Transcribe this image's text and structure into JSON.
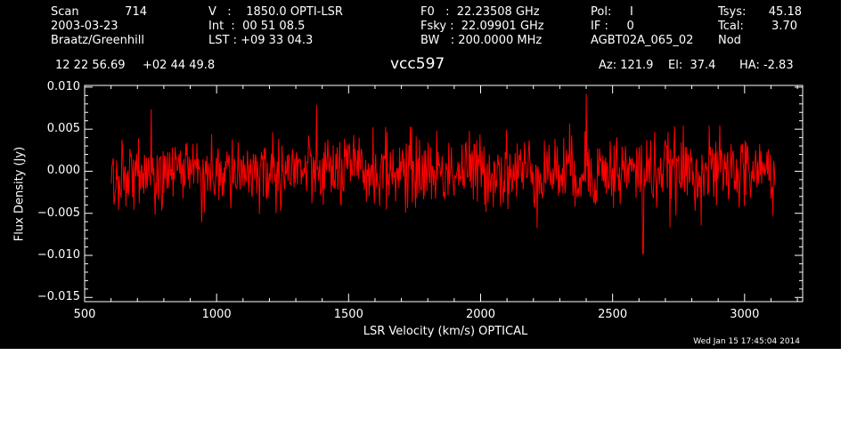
{
  "header": {
    "scan_label": "Scan",
    "scan_value": "714",
    "date": "2003-03-23",
    "observer": "Braatz/Greenhill",
    "velocity": "V   :    1850.0 OPTI-LSR",
    "int_time": "Int  :  00 51 08.5",
    "lst": "LST : +09 33 04.3",
    "f0": "F0   :  22.23508 GHz",
    "fsky": "Fsky :  22.09901 GHz",
    "bw": "BW   : 200.0000 MHz",
    "pol": "Pol:     I",
    "if": "IF :     0",
    "project": "AGBT02A_065_02",
    "tsys_label": "Tsys:",
    "tsys_value": "45.18",
    "tcal_label": "Tcal:",
    "tcal_value": "3.70",
    "mode": "Nod",
    "ra": "12 22 56.69",
    "dec": "+02 44 49.8",
    "source": "vcc597",
    "azimuth": "Az: 121.9",
    "elevation": "El:  37.4",
    "hour_angle": "HA: -2.83"
  },
  "timestamp": "Wed Jan 15 17:45:04 2014",
  "chart_data": {
    "type": "line",
    "xlabel": "LSR Velocity (km/s) OPTICAL",
    "ylabel": "Flux Density (Jy)",
    "xlim": [
      500,
      3220
    ],
    "ylim": [
      -0.0155,
      0.0102
    ],
    "x_ticks": [
      500,
      1000,
      1500,
      2000,
      2500,
      3000
    ],
    "x_tick_labels": [
      "500",
      "1000",
      "1500",
      "2000",
      "2500",
      "3000"
    ],
    "y_ticks": [
      -0.015,
      -0.01,
      -0.005,
      0.0,
      0.005,
      0.01
    ],
    "y_tick_labels": [
      "−0.015",
      "−0.010",
      "−0.005",
      "0.000",
      "0.005",
      "0.010"
    ],
    "grid": false,
    "series": [
      {
        "color": "#ff0000",
        "x_range": [
          601,
          3115
        ],
        "num_points": 1000,
        "mean": 0.0,
        "rms": 0.0022,
        "peak_max": 0.0092,
        "peak_max_x": 2400,
        "peak_min": -0.0098,
        "peak_min_x": 2615
      }
    ],
    "colors": {
      "background": "#000000",
      "axes": "#ffffff",
      "trace": "#ff0000"
    }
  }
}
